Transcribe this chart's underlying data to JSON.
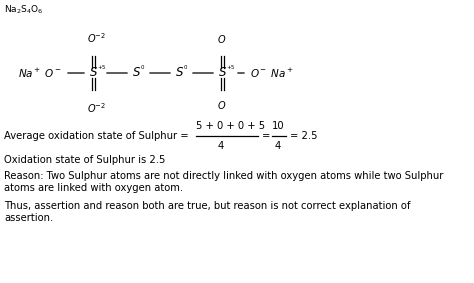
{
  "formula_top": "Na₂S₄O₆",
  "avg_text": "Average oxidation state of Sulphur = ",
  "numerator": "5 + 0 + 0 + 5",
  "denominator": "4",
  "eq2_num": "10",
  "eq2_den": "4",
  "eq_result": "= 2.5",
  "oxidation_line": "Oxidation state of Sulphur is 2.5",
  "reason_line1": "Reason: Two Sulphur atoms are not directly linked with oxygen atoms while two Sulphur",
  "reason_line2": "atoms are linked with oxygen atom.",
  "thus_line1": "Thus, assertion and reason both are true, but reason is not correct explanation of",
  "thus_line2": "assertion.",
  "font_size_diagram": 7.0,
  "font_size_body": 7.2
}
